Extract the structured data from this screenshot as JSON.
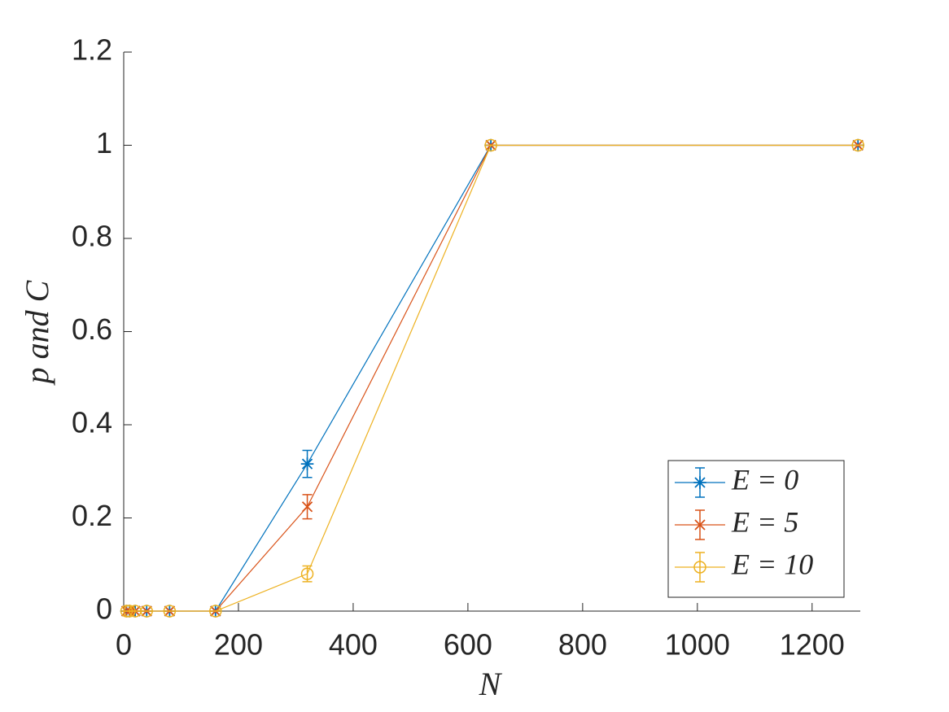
{
  "chart_data": {
    "type": "errorbar-line",
    "x_label": "N",
    "y_label": "p and C",
    "x": [
      5,
      10,
      20,
      40,
      80,
      160,
      320,
      640,
      1280
    ],
    "series": [
      {
        "name": "E = 0",
        "color": "#0072BD",
        "marker": "asterisk",
        "values": [
          0,
          0,
          0,
          0,
          0,
          0,
          0.316,
          1,
          1
        ],
        "errors": [
          0,
          0,
          0,
          0,
          0,
          0,
          0.029,
          0,
          0
        ]
      },
      {
        "name": "E = 5",
        "color": "#D95319",
        "marker": "x",
        "values": [
          0,
          0,
          0,
          0,
          0,
          0,
          0.224,
          1,
          1
        ],
        "errors": [
          0,
          0,
          0,
          0,
          0,
          0,
          0.026,
          0,
          0
        ]
      },
      {
        "name": "E = 10",
        "color": "#EDB120",
        "marker": "circle",
        "values": [
          0,
          0,
          0,
          0,
          0,
          0,
          0.08,
          1,
          1
        ],
        "errors": [
          0,
          0,
          0,
          0,
          0,
          0,
          0.017,
          0,
          0
        ]
      }
    ],
    "xlim": [
      0,
      1284
    ],
    "xticks": [
      0,
      200,
      400,
      600,
      800,
      1000,
      1200
    ],
    "ylim": [
      0,
      1.2
    ],
    "yticks": [
      0,
      0.2,
      0.4,
      0.6,
      0.8,
      1,
      1.2
    ],
    "legend": "lower-right",
    "grid": false
  }
}
